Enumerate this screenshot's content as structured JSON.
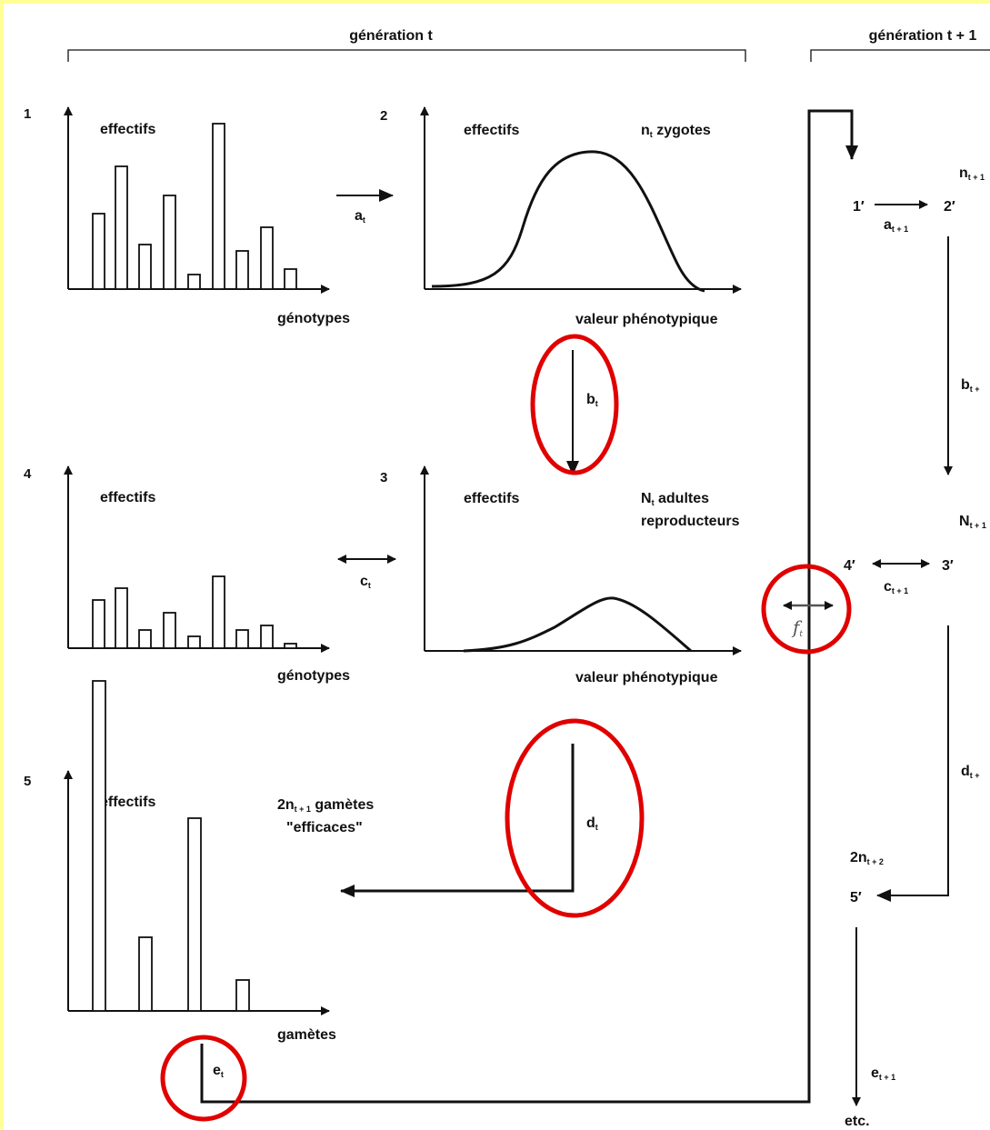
{
  "header": {
    "generation_t": "génération t",
    "generation_t1": "génération t + 1"
  },
  "panels": [
    {
      "number": "1",
      "ylabel": "effectifs",
      "xlabel": "génotypes"
    },
    {
      "number": "2",
      "ylabel": "effectifs",
      "xlabel": "valeur phénotypique",
      "note": {
        "main": "n",
        "sub": "t",
        "rest": " zygotes"
      }
    },
    {
      "number": "3",
      "ylabel": "effectifs",
      "xlabel": "valeur phénotypique",
      "note": {
        "main": "N",
        "sub": "t",
        "rest": " adultes",
        "line2": "reproducteurs"
      }
    },
    {
      "number": "4",
      "ylabel": "effectifs",
      "xlabel": "génotypes"
    },
    {
      "number": "5",
      "ylabel": "effectifs",
      "xlabel": "gamètes",
      "note": {
        "main": "2n",
        "sub": "t + 1",
        "rest": " gamètes",
        "line2": "\"efficaces\""
      }
    }
  ],
  "steps": {
    "a": {
      "main": "a",
      "sub": "t"
    },
    "b": {
      "main": "b",
      "sub": "t"
    },
    "c": {
      "main": "c",
      "sub": "t"
    },
    "d": {
      "main": "d",
      "sub": "t"
    },
    "e": {
      "main": "e",
      "sub": "t"
    },
    "f": {
      "main": "f",
      "sub": "t"
    }
  },
  "next_generation": {
    "n": {
      "main": "n",
      "sub": "t + 1"
    },
    "one": "1′",
    "two": "2′",
    "three": "3′",
    "four": "4′",
    "five": "5′",
    "a": {
      "main": "a",
      "sub": "t + 1"
    },
    "b": {
      "main": "b",
      "sub": "t +"
    },
    "N": {
      "main": "N",
      "sub": "t + 1"
    },
    "c": {
      "main": "c",
      "sub": "t + 1"
    },
    "d": {
      "main": "d",
      "sub": "t +"
    },
    "n2": {
      "main": "2n",
      "sub": "t + 2"
    },
    "e": {
      "main": "e",
      "sub": "t + 1"
    },
    "etc": "etc."
  }
}
